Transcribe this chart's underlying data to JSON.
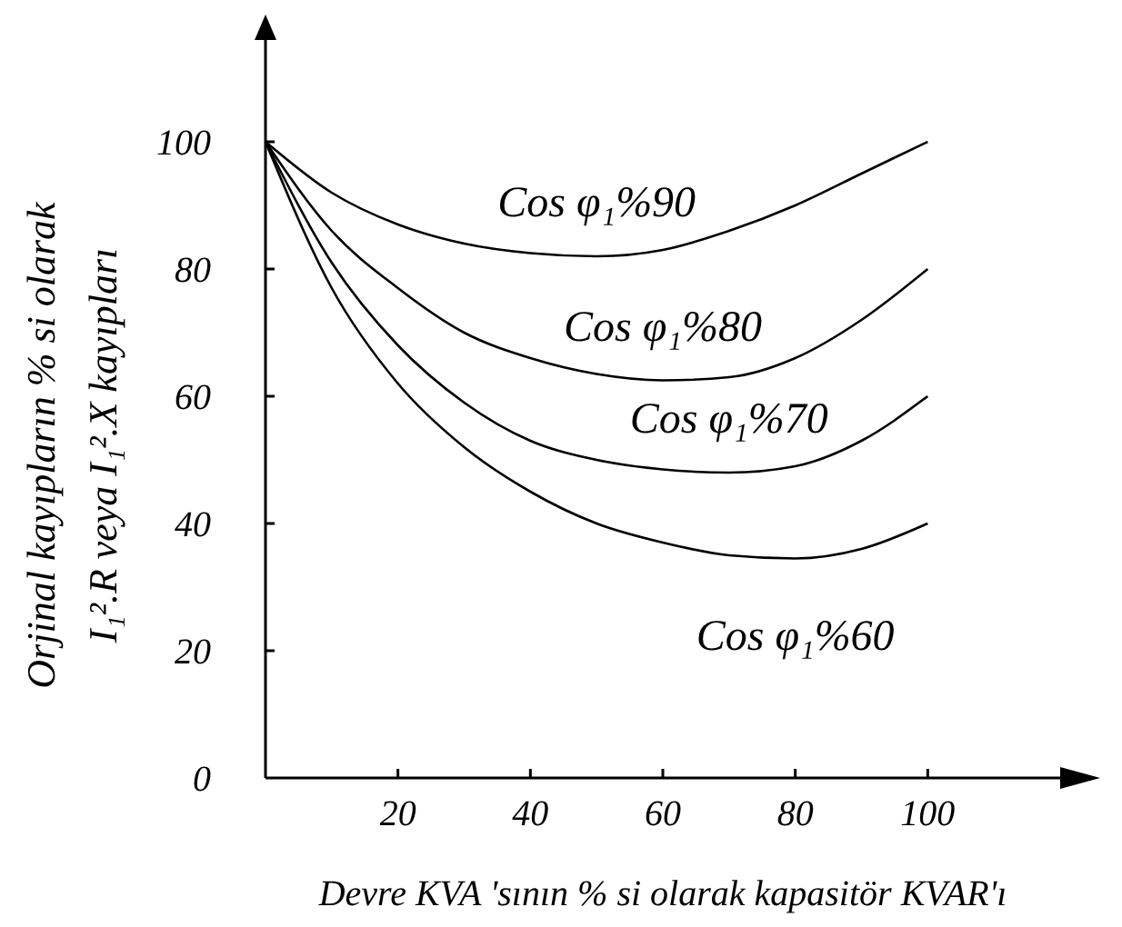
{
  "chart_data": {
    "type": "line",
    "xlabel": "Devre KVA 'sının % si olarak kapasitör KVAR'ı",
    "ylabel": "Orjinal kayıpların % si olarak\nI₁².R veya  I₁².X kayıpları",
    "x": [
      0,
      10,
      20,
      30,
      40,
      50,
      60,
      70,
      80,
      90,
      100
    ],
    "series": [
      {
        "name": "Cos φ₁%90",
        "color": "#000000",
        "values": [
          100,
          92,
          87,
          84,
          82.5,
          82,
          83,
          86,
          90,
          95,
          100
        ]
      },
      {
        "name": "Cos φ₁%80",
        "color": "#000000",
        "values": [
          100,
          86,
          77,
          70,
          66,
          63.5,
          62.5,
          63,
          66,
          72,
          80
        ]
      },
      {
        "name": "Cos φ₁%70",
        "color": "#000000",
        "values": [
          100,
          81,
          68,
          59,
          53,
          50,
          48.5,
          48,
          49,
          53,
          60
        ]
      },
      {
        "name": "Cos φ₁%60",
        "color": "#000000",
        "values": [
          100,
          77,
          62,
          52,
          45,
          40,
          37,
          35,
          34.5,
          36,
          40
        ]
      }
    ],
    "xlim": [
      0,
      120
    ],
    "xticks": [
      20,
      40,
      60,
      80,
      100
    ],
    "ylim": [
      0,
      116
    ],
    "yticks": [
      0,
      20,
      40,
      60,
      80,
      100
    ],
    "grid": false,
    "legend": false,
    "marker": "none",
    "line_style": "solid"
  }
}
